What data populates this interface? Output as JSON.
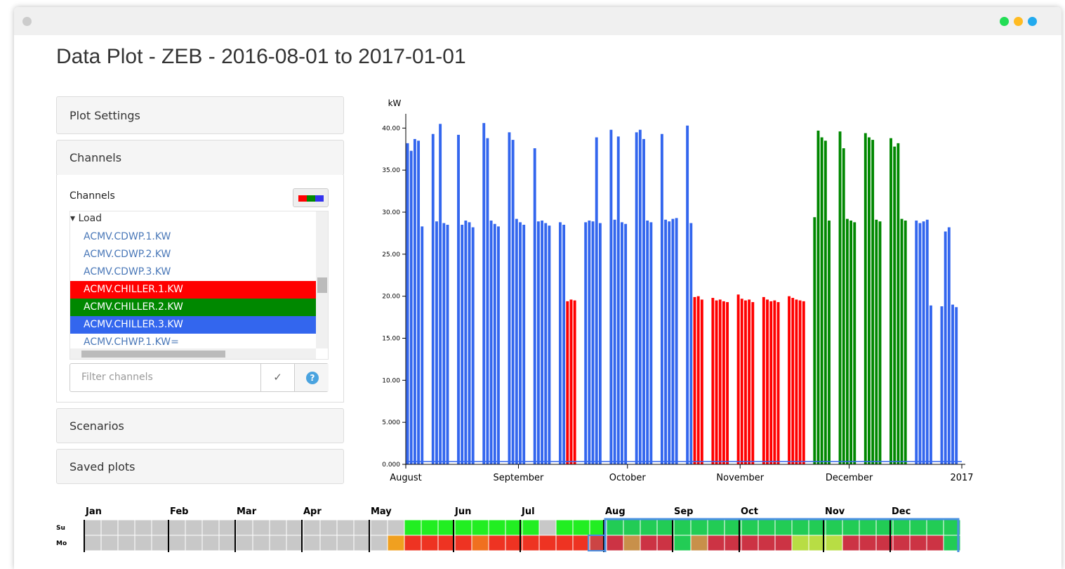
{
  "header": {
    "title": "Data Plot - ZEB - 2016-08-01 to 2017-01-01"
  },
  "sidebar": {
    "plot_settings": "Plot Settings",
    "channels_header": "Channels",
    "channels_label": "Channels",
    "tree_group": "Load",
    "items": [
      "ACMV.CDWP.1.KW",
      "ACMV.CDWP.2.KW",
      "ACMV.CDWP.3.KW",
      "ACMV.CHILLER.1.KW",
      "ACMV.CHILLER.2.KW",
      "ACMV.CHILLER.3.KW",
      "ACMV.CHWP.1.KW="
    ],
    "item_colors": [
      null,
      null,
      null,
      "#ff0000",
      "#008800",
      "#3366ee",
      null
    ],
    "filter_placeholder": "Filter channels",
    "apply": "✓",
    "help": "?",
    "scenarios": "Scenarios",
    "saved_plots": "Saved plots"
  },
  "chart_data": {
    "type": "line",
    "y_label": "kW",
    "xlim": [
      "2016-08-01",
      "2017-01-01"
    ],
    "xticks": [
      {
        "value": "2016-08-01",
        "label": "August"
      },
      {
        "value": "2016-09-01",
        "label": "September"
      },
      {
        "value": "2016-10-01",
        "label": "October"
      },
      {
        "value": "2016-11-01",
        "label": "November"
      },
      {
        "value": "2016-12-01",
        "label": "December"
      },
      {
        "value": "2017-01-01",
        "label": "2017"
      }
    ],
    "ylim": [
      0,
      41.7
    ],
    "yticks": [
      {
        "value": 0,
        "label": "0.000"
      },
      {
        "value": 5,
        "label": "5.000"
      },
      {
        "value": 10,
        "label": "10.00"
      },
      {
        "value": 15,
        "label": "15.00"
      },
      {
        "value": 20,
        "label": "20.00"
      },
      {
        "value": 25,
        "label": "25.00"
      },
      {
        "value": 30,
        "label": "30.00"
      },
      {
        "value": 35,
        "label": "35.00"
      },
      {
        "value": 40,
        "label": "40.00"
      }
    ],
    "series": [
      {
        "color": "#ff0000",
        "x": [
          "2016-09-14",
          "2016-09-15",
          "2016-09-16",
          "2016-10-19",
          "2016-10-20",
          "2016-10-21",
          "2016-10-24",
          "2016-10-25",
          "2016-10-26",
          "2016-10-27",
          "2016-10-28",
          "2016-10-31",
          "2016-11-01",
          "2016-11-02",
          "2016-11-03",
          "2016-11-04",
          "2016-11-07",
          "2016-11-08",
          "2016-11-09",
          "2016-11-10",
          "2016-11-11",
          "2016-11-14",
          "2016-11-15",
          "2016-11-16",
          "2016-11-17",
          "2016-11-18"
        ],
        "values": [
          19.4,
          19.6,
          19.5,
          19.9,
          20.0,
          19.6,
          19.8,
          19.5,
          19.6,
          19.4,
          19.3,
          20.2,
          19.7,
          19.5,
          19.6,
          19.3,
          19.9,
          19.6,
          19.4,
          19.5,
          19.3,
          20.0,
          19.8,
          19.6,
          19.5,
          19.4
        ]
      },
      {
        "color": "#008800",
        "x": [
          "2016-11-21",
          "2016-11-22",
          "2016-11-23",
          "2016-11-24",
          "2016-11-25",
          "2016-11-28",
          "2016-11-29",
          "2016-11-30",
          "2016-12-01",
          "2016-12-02",
          "2016-12-05",
          "2016-12-06",
          "2016-12-07",
          "2016-12-08",
          "2016-12-09",
          "2016-12-12",
          "2016-12-13",
          "2016-12-14",
          "2016-12-15",
          "2016-12-16"
        ],
        "values": [
          29.4,
          39.7,
          38.9,
          38.5,
          29.0,
          39.6,
          37.6,
          29.2,
          29.0,
          28.8,
          39.4,
          38.9,
          38.6,
          29.1,
          28.9,
          38.8,
          37.8,
          38.2,
          29.2,
          29.0
        ]
      },
      {
        "color": "#3366ee",
        "x": [
          "2016-08-01",
          "2016-08-02",
          "2016-08-03",
          "2016-08-04",
          "2016-08-05",
          "2016-08-08",
          "2016-08-09",
          "2016-08-10",
          "2016-08-11",
          "2016-08-12",
          "2016-08-15",
          "2016-08-16",
          "2016-08-17",
          "2016-08-18",
          "2016-08-19",
          "2016-08-22",
          "2016-08-23",
          "2016-08-24",
          "2016-08-25",
          "2016-08-26",
          "2016-08-29",
          "2016-08-30",
          "2016-08-31",
          "2016-09-01",
          "2016-09-02",
          "2016-09-05",
          "2016-09-06",
          "2016-09-07",
          "2016-09-08",
          "2016-09-09",
          "2016-09-12",
          "2016-09-13",
          "2016-09-19",
          "2016-09-20",
          "2016-09-21",
          "2016-09-22",
          "2016-09-23",
          "2016-09-26",
          "2016-09-27",
          "2016-09-28",
          "2016-09-29",
          "2016-09-30",
          "2016-10-03",
          "2016-10-04",
          "2016-10-05",
          "2016-10-06",
          "2016-10-07",
          "2016-10-10",
          "2016-10-11",
          "2016-10-12",
          "2016-10-13",
          "2016-10-14",
          "2016-10-17",
          "2016-10-18",
          "2016-12-19",
          "2016-12-20",
          "2016-12-21",
          "2016-12-22",
          "2016-12-23",
          "2016-12-26",
          "2016-12-27",
          "2016-12-28",
          "2016-12-29",
          "2016-12-30"
        ],
        "values": [
          38.2,
          37.3,
          38.7,
          38.5,
          28.3,
          39.3,
          28.9,
          40.5,
          28.7,
          28.5,
          39.2,
          28.5,
          29.0,
          28.8,
          28.2,
          40.6,
          38.8,
          29.0,
          28.6,
          28.3,
          39.5,
          38.6,
          29.2,
          28.8,
          28.5,
          37.6,
          28.9,
          29.0,
          28.7,
          28.4,
          28.8,
          28.5,
          28.8,
          29.0,
          28.9,
          38.9,
          28.7,
          39.8,
          29.1,
          39.0,
          28.8,
          28.6,
          39.5,
          39.8,
          38.7,
          29.0,
          28.8,
          39.3,
          29.1,
          28.9,
          29.2,
          29.3,
          40.3,
          28.7,
          29.0,
          28.7,
          28.9,
          29.1,
          18.9,
          18.8,
          27.7,
          28.2,
          19.0,
          18.7
        ]
      }
    ]
  },
  "calendar": {
    "months": [
      "Jan",
      "Feb",
      "Mar",
      "Apr",
      "May",
      "Jun",
      "Jul",
      "Aug",
      "Sep",
      "Oct",
      "Nov",
      "Dec"
    ],
    "days": [
      "Su",
      "Mo"
    ],
    "rows": [
      [
        "#c8c8c8",
        "#c8c8c8",
        "#c8c8c8",
        "#c8c8c8",
        "#c8c8c8",
        "#c8c8c8",
        "#c8c8c8",
        "#c8c8c8",
        "#c8c8c8",
        "#c8c8c8",
        "#c8c8c8",
        "#c8c8c8",
        "#c8c8c8",
        "#c8c8c8",
        "#c8c8c8",
        "#c8c8c8",
        "#c8c8c8",
        "#c8c8c8",
        "#c8c8c8",
        "#22ee22",
        "#22ee22",
        "#22ee22",
        "#22ee22",
        "#22ee22",
        "#22ee22",
        "#22ee22",
        "#22ee22",
        "#c8c8c8",
        "#22ee22",
        "#22ee22",
        "#22ee22",
        "#22cc55",
        "#22cc55",
        "#22cc55",
        "#22cc55",
        "#22cc55",
        "#22cc55",
        "#22cc55",
        "#22cc55",
        "#22cc55",
        "#22cc55",
        "#22cc55",
        "#22cc55",
        "#22cc55",
        "#22cc55",
        "#22cc55",
        "#22cc55",
        "#22cc55",
        "#22cc55",
        "#22cc55",
        "#22cc55",
        "#22cc55"
      ],
      [
        "#c8c8c8",
        "#c8c8c8",
        "#c8c8c8",
        "#c8c8c8",
        "#c8c8c8",
        "#c8c8c8",
        "#c8c8c8",
        "#c8c8c8",
        "#c8c8c8",
        "#c8c8c8",
        "#c8c8c8",
        "#c8c8c8",
        "#c8c8c8",
        "#c8c8c8",
        "#c8c8c8",
        "#c8c8c8",
        "#c8c8c8",
        "#c8c8c8",
        "#f0a020",
        "#ee3322",
        "#ee3322",
        "#ee3322",
        "#ee3322",
        "#f07020",
        "#ee3322",
        "#ee3322",
        "#ee3322",
        "#ee3322",
        "#ee3322",
        "#ee3322",
        "#cc4444",
        "#cc3344",
        "#c8904a",
        "#cc3344",
        "#cc3344",
        "#22cc55",
        "#c8904a",
        "#cc3344",
        "#cc3344",
        "#cc3344",
        "#cc3344",
        "#cc3344",
        "#b8dd44",
        "#b8dd44",
        "#b8dd44",
        "#cc3344",
        "#cc3344",
        "#cc3344",
        "#cc3344",
        "#cc3344",
        "#cc3344",
        "#22cc55"
      ]
    ]
  }
}
